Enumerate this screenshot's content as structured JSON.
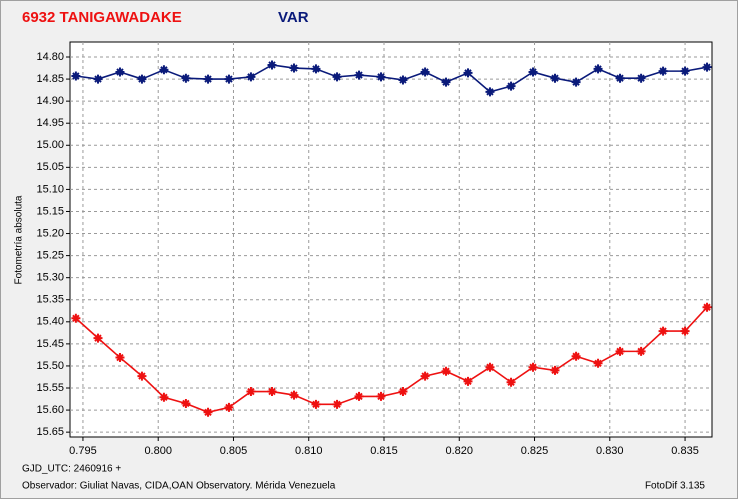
{
  "chart_data": {
    "type": "line",
    "ylabel": "Fotometría absoluta",
    "footer_left": "GJD_UTC: 2460916 +",
    "footer_observer": "Observador: Giuliat Navas, CIDA,OAN Observatory. Mérida Venezuela",
    "footer_right": "FotoDif 3.135",
    "x": [
      0.79453,
      0.796,
      0.79746,
      0.79892,
      0.80038,
      0.80184,
      0.80331,
      0.8047,
      0.80616,
      0.80756,
      0.80902,
      0.81048,
      0.81188,
      0.81334,
      0.8148,
      0.81626,
      0.81773,
      0.81912,
      0.82058,
      0.82204,
      0.82344,
      0.8249,
      0.82636,
      0.82776,
      0.82922,
      0.83068,
      0.83208,
      0.83354,
      0.835,
      0.83646
    ],
    "series": [
      {
        "name": "6932 TANIGAWADAKE",
        "color": "#ee1111",
        "values": [
          15.392,
          15.437,
          15.481,
          15.523,
          15.571,
          15.585,
          15.605,
          15.594,
          15.558,
          15.558,
          15.566,
          15.587,
          15.587,
          15.569,
          15.569,
          15.558,
          15.523,
          15.512,
          15.535,
          15.503,
          15.537,
          15.503,
          15.51,
          15.478,
          15.494,
          15.467,
          15.467,
          15.421,
          15.421,
          15.367
        ]
      },
      {
        "name": "VAR",
        "color": "#0a1a7a",
        "values": [
          14.843,
          14.85,
          14.834,
          14.85,
          14.829,
          14.848,
          14.85,
          14.85,
          14.845,
          14.818,
          14.825,
          14.827,
          14.845,
          14.841,
          14.845,
          14.852,
          14.834,
          14.857,
          14.836,
          14.879,
          14.866,
          14.834,
          14.848,
          14.857,
          14.827,
          14.848,
          14.848,
          14.832,
          14.832,
          14.823
        ]
      }
    ],
    "xlim": [
      0.79414,
      0.83679
    ],
    "ylim": [
      15.661,
      14.766
    ],
    "xticks": [
      {
        "value": 0.795,
        "label": "0.795"
      },
      {
        "value": 0.8,
        "label": "0.800"
      },
      {
        "value": 0.805,
        "label": "0.805"
      },
      {
        "value": 0.81,
        "label": "0.810"
      },
      {
        "value": 0.815,
        "label": "0.815"
      },
      {
        "value": 0.82,
        "label": "0.820"
      },
      {
        "value": 0.825,
        "label": "0.825"
      },
      {
        "value": 0.83,
        "label": "0.830"
      },
      {
        "value": 0.835,
        "label": "0.835"
      }
    ],
    "yticks": [
      {
        "value": 14.8,
        "label": "14.80"
      },
      {
        "value": 14.85,
        "label": "14.85"
      },
      {
        "value": 14.9,
        "label": "14.90"
      },
      {
        "value": 14.95,
        "label": "14.95"
      },
      {
        "value": 15,
        "label": "15.00"
      },
      {
        "value": 15.05,
        "label": "15.05"
      },
      {
        "value": 15.1,
        "label": "15.10"
      },
      {
        "value": 15.15,
        "label": "15.15"
      },
      {
        "value": 15.2,
        "label": "15.20"
      },
      {
        "value": 15.25,
        "label": "15.25"
      },
      {
        "value": 15.3,
        "label": "15.30"
      },
      {
        "value": 15.35,
        "label": "15.35"
      },
      {
        "value": 15.4,
        "label": "15.40"
      },
      {
        "value": 15.45,
        "label": "15.45"
      },
      {
        "value": 15.5,
        "label": "15.50"
      },
      {
        "value": 15.55,
        "label": "15.55"
      },
      {
        "value": 15.6,
        "label": "15.60"
      },
      {
        "value": 15.65,
        "label": "15.65"
      }
    ],
    "grid": true
  }
}
